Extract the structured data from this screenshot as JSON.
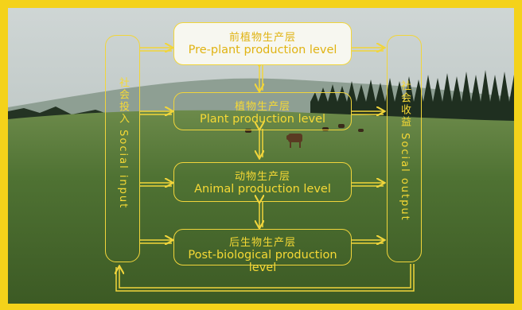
{
  "levels": [
    {
      "zh": "前植物生产层",
      "en": "Pre-plant production level"
    },
    {
      "zh": "植物生产层",
      "en": "Plant production level"
    },
    {
      "zh": "动物生产层",
      "en": "Animal production level"
    },
    {
      "zh": "后生物生产层",
      "en": "Post-biological production level"
    }
  ],
  "social_input": {
    "zh": "社会投入",
    "en": "Social input"
  },
  "social_output": {
    "zh": "社会收益",
    "en": "Social output"
  },
  "colors": {
    "frame": "#f4d21a",
    "line": "#f1d53b",
    "text": "#f6d935"
  }
}
